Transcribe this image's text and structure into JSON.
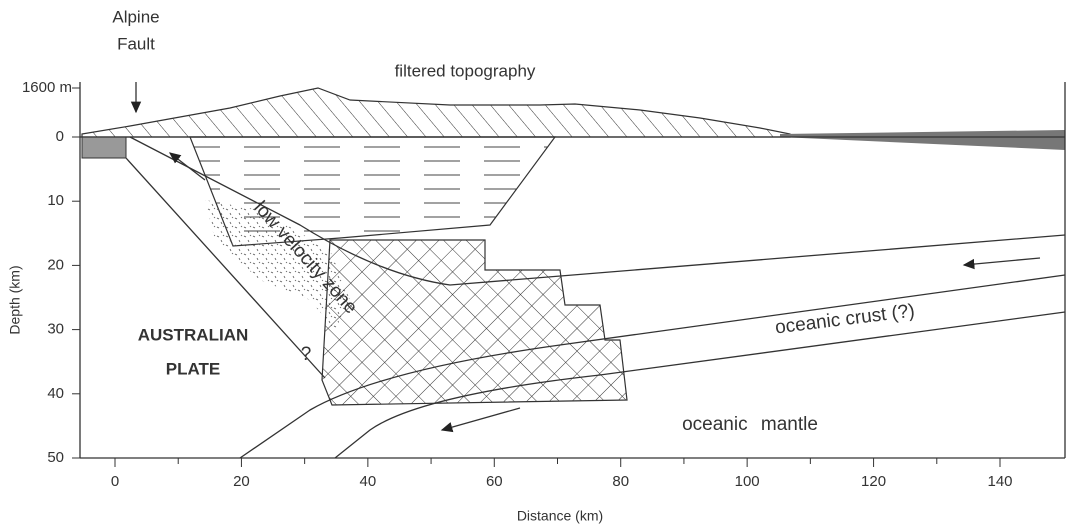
{
  "title": {
    "lines": [
      "Alpine",
      "Fault"
    ]
  },
  "labels": {
    "topography": "filtered topography",
    "low_velocity": "low velocity zone",
    "plate": [
      "AUSTRALIAN",
      "PLATE"
    ],
    "question": "?",
    "oceanic_crust": "oceanic crust (?)",
    "oceanic_mantle": "oceanic mantle"
  },
  "x_axis": {
    "label": "Distance (km)",
    "ticks": [
      0,
      20,
      40,
      60,
      80,
      100,
      120,
      140
    ]
  },
  "y_axis": {
    "label": "Depth (km)",
    "top_label": "1600 m",
    "ticks": [
      0,
      10,
      20,
      30,
      40,
      50
    ]
  }
}
